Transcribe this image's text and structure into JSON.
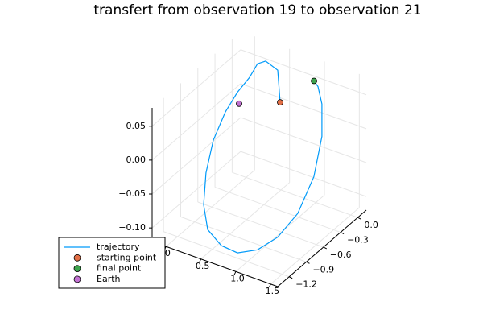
{
  "chart_data": {
    "type": "line3d",
    "title": "transfert from observation 19 to observation 21",
    "xlim": [
      -0.2,
      1.6
    ],
    "ylim": [
      -1.4,
      0.15
    ],
    "zlim": [
      -0.12,
      0.077
    ],
    "xticks": [
      0,
      0.5,
      {
        "value": 1,
        "label": "1.0"
      },
      1.5
    ],
    "yticks": [
      {
        "value": -1.2,
        "label": "−1.2"
      },
      {
        "value": -0.9,
        "label": "−0.9"
      },
      {
        "value": -0.6,
        "label": "−0.6"
      },
      {
        "value": -0.3,
        "label": "−0.3"
      },
      {
        "value": 0,
        "label": "0.0"
      }
    ],
    "zticks": [
      {
        "value": -0.1,
        "label": "−0.10"
      },
      {
        "value": -0.05,
        "label": "−0.05"
      },
      {
        "value": 0,
        "label": "0.00"
      },
      0.05
    ],
    "grid": true,
    "legend": "bottom-left",
    "series": [
      {
        "name": "trajectory",
        "color": "#009af9",
        "kind": "line",
        "x": [
          0.57,
          0.494,
          0.321,
          0.246,
          0.213,
          0.122,
          0.072,
          0.021,
          0.081,
          0.17,
          0.35,
          0.628,
          0.9,
          1.147,
          1.354,
          1.478,
          1.545,
          1.456,
          1.251,
          1.03,
          0.9
        ],
        "y": [
          -0.1,
          -0.05,
          -0.05,
          -0.1,
          -0.2,
          -0.3,
          -0.45,
          -0.6,
          -0.8,
          -0.95,
          -1.1,
          -1.2,
          -1.25,
          -1.2,
          -1.1,
          -0.9,
          -0.7,
          -0.45,
          -0.2,
          0.0,
          0.09
        ],
        "z": [
          0.019,
          0.06,
          0.067,
          0.064,
          0.05,
          0.032,
          0.012,
          -0.021,
          -0.052,
          -0.085,
          -0.104,
          -0.11,
          -0.107,
          -0.097,
          -0.078,
          -0.053,
          -0.011,
          0.027,
          0.049,
          0.052,
          0.049
        ]
      },
      {
        "name": "starting point",
        "color": "#e26f46",
        "kind": "point",
        "x": [
          0.57
        ],
        "y": [
          -0.1
        ],
        "z": [
          0.019
        ]
      },
      {
        "name": "final point",
        "color": "#3da44d",
        "kind": "point",
        "x": [
          0.9
        ],
        "y": [
          0.09
        ],
        "z": [
          0.049
        ]
      },
      {
        "name": "Earth",
        "color": "#c271d2",
        "kind": "point",
        "x": [
          -0.1
        ],
        "y": [
          0
        ],
        "z": [
          -0.015
        ]
      }
    ]
  }
}
